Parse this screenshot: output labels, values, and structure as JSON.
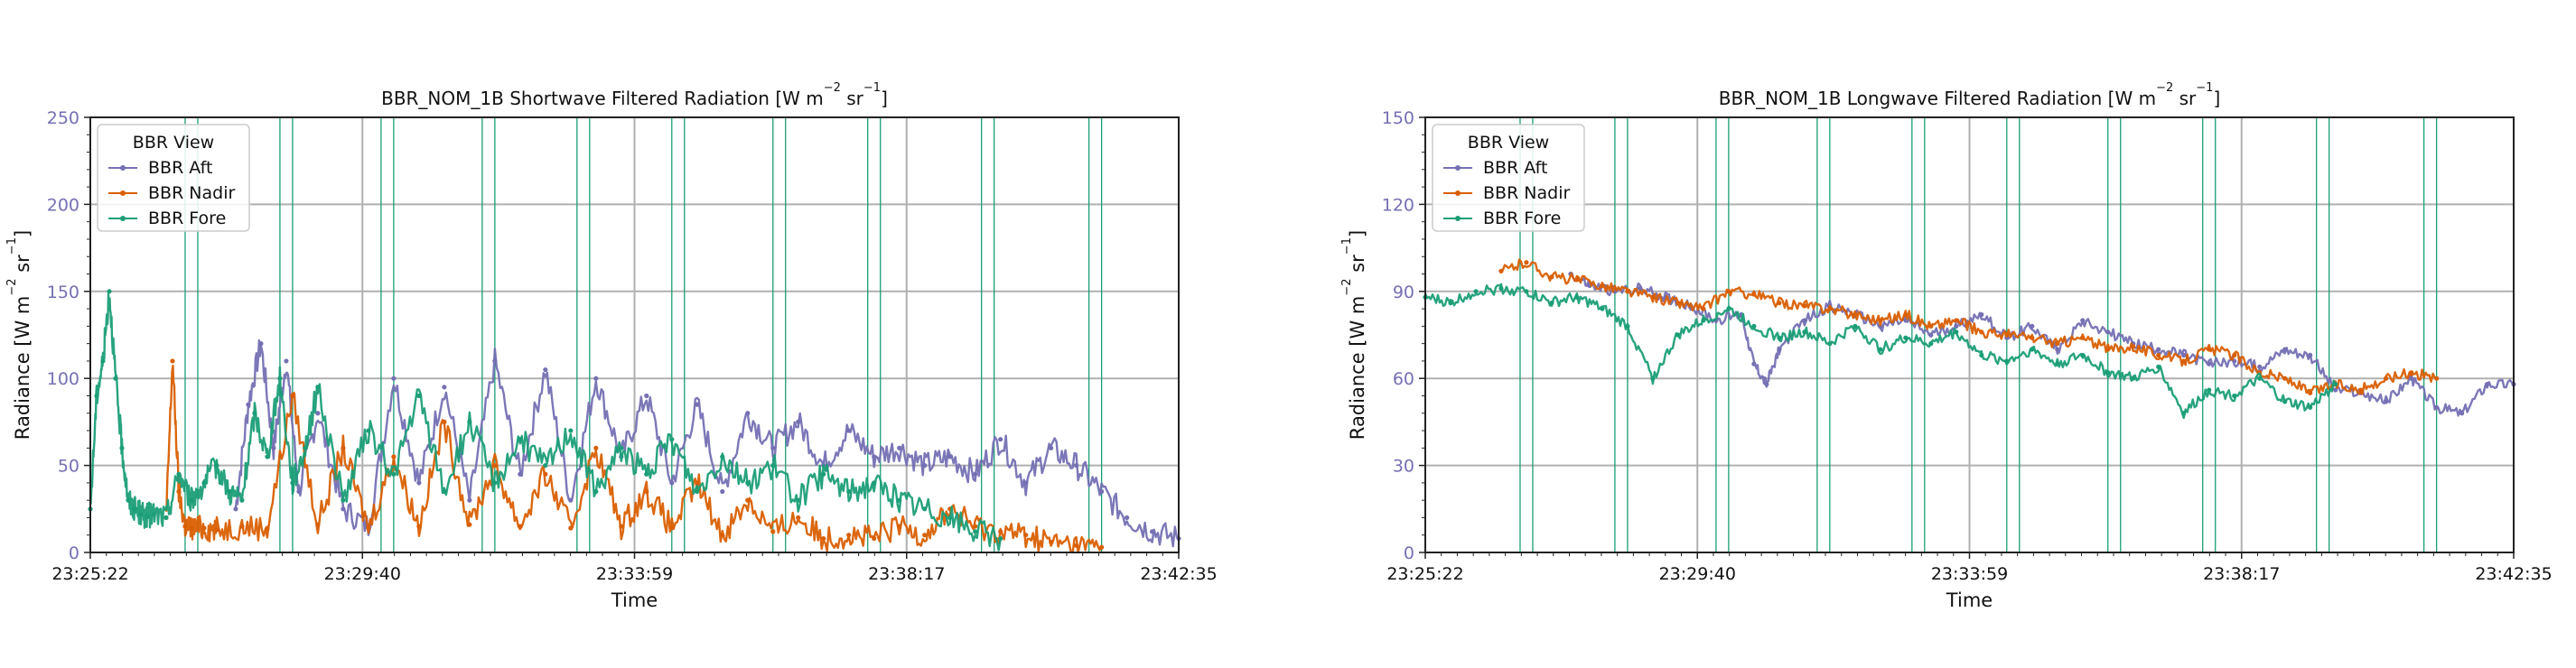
{
  "figure": {
    "background": "#ffffff"
  },
  "chart_data": [
    {
      "type": "line",
      "title": "BBR_NOM_1B Shortwave Filtered Radiation [W m⁻² sr⁻¹]",
      "title_parts": {
        "main": "BBR_NOM_1B Shortwave Filtered Radiation [W m",
        "exp1": "−2",
        "mid": " sr",
        "exp2": "−1",
        "end": "]"
      },
      "xlabel": "Time",
      "ylabel": "Radiance [W m⁻² sr⁻¹]",
      "ylabel_parts": {
        "main": "Radiance [W m",
        "exp1": "−2",
        "mid": " sr",
        "exp2": "−1",
        "end": "]"
      },
      "x_ticks": [
        "23:25:22",
        "23:29:40",
        "23:33:59",
        "23:38:17",
        "23:42:35"
      ],
      "x_range_minutes": [
        0,
        17.22
      ],
      "ylim": [
        0,
        250
      ],
      "y_ticks": [
        0,
        50,
        100,
        150,
        200,
        250
      ],
      "grid": true,
      "legend": {
        "title": "BBR View",
        "placement": "top-left",
        "entries": [
          "BBR Aft",
          "BBR Nadir",
          "BBR Fore"
        ]
      },
      "series": [
        {
          "name": "BBR Aft",
          "color": "#7570b3",
          "x": [
            2.3,
            2.5,
            2.7,
            2.9,
            3.1,
            3.3,
            3.6,
            4.0,
            4.4,
            4.8,
            5.2,
            5.6,
            6.0,
            6.4,
            6.8,
            7.2,
            7.6,
            8.0,
            8.4,
            8.8,
            9.2,
            9.6,
            10.0,
            10.4,
            10.8,
            11.2,
            11.6,
            12.0,
            12.4,
            12.8,
            13.2,
            13.6,
            14.0,
            14.4,
            14.8,
            15.2,
            15.6,
            16.0,
            16.4,
            16.8,
            17.22
          ],
          "values": [
            25,
            85,
            120,
            60,
            110,
            35,
            80,
            25,
            15,
            100,
            40,
            95,
            30,
            110,
            45,
            105,
            30,
            100,
            55,
            90,
            40,
            85,
            35,
            80,
            60,
            75,
            50,
            70,
            55,
            60,
            50,
            55,
            45,
            65,
            40,
            60,
            50,
            35,
            20,
            12,
            8
          ]
        },
        {
          "name": "BBR Nadir",
          "color": "#d95f02",
          "x": [
            1.2,
            1.3,
            1.4,
            1.5,
            1.6,
            1.8,
            2.0,
            2.4,
            2.8,
            3.2,
            3.6,
            4.0,
            4.4,
            4.8,
            5.2,
            5.6,
            6.0,
            6.4,
            6.8,
            7.2,
            7.6,
            8.0,
            8.4,
            8.8,
            9.2,
            9.6,
            10.0,
            10.4,
            10.8,
            11.2,
            11.6,
            12.0,
            12.4,
            12.8,
            13.2,
            13.6,
            14.0,
            14.4,
            14.8,
            15.2,
            15.6,
            16.0
          ],
          "values": [
            20,
            110,
            35,
            15,
            14,
            14,
            13,
            15,
            14,
            90,
            16,
            60,
            14,
            55,
            15,
            75,
            16,
            50,
            15,
            45,
            14,
            60,
            15,
            35,
            14,
            40,
            10,
            30,
            12,
            20,
            8,
            10,
            8,
            15,
            10,
            25,
            15,
            12,
            10,
            6,
            4,
            3
          ]
        },
        {
          "name": "BBR Fore",
          "color": "#1b9e77",
          "x": [
            0,
            0.1,
            0.2,
            0.3,
            0.4,
            0.5,
            0.6,
            0.7,
            0.8,
            0.9,
            1.0,
            1.2,
            1.4,
            1.6,
            1.8,
            2.0,
            2.2,
            2.4,
            2.6,
            2.8,
            3.0,
            3.2,
            3.4,
            3.6,
            4.0,
            4.4,
            4.8,
            5.2,
            5.6,
            6.0,
            6.4,
            6.8,
            7.2,
            7.6,
            8.0,
            8.4,
            8.8,
            9.2,
            9.6,
            10.0,
            10.4,
            10.8,
            11.2,
            11.6,
            12.0,
            12.4,
            12.8,
            13.2,
            13.6,
            14.0,
            14.4
          ],
          "values": [
            25,
            90,
            110,
            150,
            100,
            60,
            30,
            25,
            22,
            21,
            22,
            20,
            45,
            30,
            40,
            50,
            35,
            30,
            80,
            55,
            100,
            40,
            60,
            95,
            30,
            70,
            45,
            90,
            35,
            75,
            40,
            65,
            50,
            70,
            35,
            60,
            45,
            65,
            35,
            55,
            40,
            50,
            30,
            45,
            35,
            40,
            30,
            25,
            20,
            12,
            8
          ]
        }
      ]
    },
    {
      "type": "line",
      "title": "BBR_NOM_1B Longwave Filtered Radiation [W m⁻² sr⁻¹]",
      "title_parts": {
        "main": "BBR_NOM_1B Longwave Filtered Radiation [W m",
        "exp1": "−2",
        "mid": " sr",
        "exp2": "−1",
        "end": "]"
      },
      "xlabel": "Time",
      "ylabel": "Radiance [W m⁻² sr⁻¹]",
      "ylabel_parts": {
        "main": "Radiance [W m",
        "exp1": "−2",
        "mid": " sr",
        "exp2": "−1",
        "end": "]"
      },
      "x_ticks": [
        "23:25:22",
        "23:29:40",
        "23:33:59",
        "23:38:17",
        "23:42:35"
      ],
      "x_range_minutes": [
        0,
        17.22
      ],
      "ylim": [
        0,
        150
      ],
      "y_ticks": [
        0,
        30,
        60,
        90,
        120,
        150
      ],
      "grid": true,
      "legend": {
        "title": "BBR View",
        "placement": "top-left",
        "entries": [
          "BBR Aft",
          "BBR Nadir",
          "BBR Fore"
        ]
      },
      "series": [
        {
          "name": "BBR Aft",
          "color": "#7570b3",
          "x": [
            2.3,
            2.6,
            3.0,
            3.4,
            3.8,
            4.2,
            4.6,
            5.0,
            5.2,
            5.4,
            5.6,
            6.0,
            6.4,
            6.8,
            7.2,
            7.6,
            8.0,
            8.4,
            8.8,
            9.2,
            9.6,
            10.0,
            10.4,
            10.8,
            11.2,
            11.6,
            12.0,
            12.4,
            12.8,
            13.2,
            13.6,
            14.0,
            14.4,
            14.8,
            15.2,
            15.6,
            16.0,
            16.4,
            16.8,
            17.22
          ],
          "values": [
            96,
            92,
            90,
            91,
            88,
            85,
            80,
            82,
            65,
            58,
            70,
            80,
            85,
            82,
            78,
            80,
            75,
            78,
            82,
            74,
            78,
            70,
            80,
            76,
            72,
            70,
            68,
            65,
            66,
            64,
            70,
            68,
            56,
            55,
            52,
            60,
            50,
            48,
            58,
            58
          ]
        },
        {
          "name": "BBR Nadir",
          "color": "#d95f02",
          "x": [
            1.2,
            1.6,
            2.0,
            2.4,
            2.8,
            3.2,
            3.6,
            4.0,
            4.4,
            4.8,
            5.2,
            5.6,
            6.0,
            6.4,
            6.8,
            7.2,
            7.6,
            8.0,
            8.4,
            8.8,
            9.2,
            9.6,
            10.0,
            10.4,
            10.8,
            11.2,
            11.6,
            12.0,
            12.4,
            12.8,
            13.2,
            13.6,
            14.0,
            14.4,
            14.8,
            15.2,
            15.6,
            16.0
          ],
          "values": [
            97,
            100,
            95,
            94,
            92,
            90,
            88,
            86,
            84,
            90,
            89,
            86,
            85,
            84,
            82,
            80,
            82,
            78,
            80,
            76,
            75,
            74,
            72,
            74,
            70,
            71,
            68,
            66,
            70,
            68,
            62,
            60,
            55,
            58,
            56,
            60,
            62,
            60
          ]
        },
        {
          "name": "BBR Fore",
          "color": "#1b9e77",
          "x": [
            0,
            0.4,
            0.8,
            1.2,
            1.6,
            2.0,
            2.4,
            2.8,
            3.2,
            3.6,
            4.0,
            4.4,
            4.8,
            5.2,
            5.6,
            6.0,
            6.4,
            6.8,
            7.2,
            7.6,
            8.0,
            8.4,
            8.8,
            9.2,
            9.6,
            10.0,
            10.4,
            10.8,
            11.2,
            11.6,
            12.0,
            12.4,
            12.8,
            13.2,
            13.6,
            14.0,
            14.4
          ],
          "values": [
            88,
            86,
            90,
            91,
            90,
            86,
            88,
            84,
            78,
            60,
            75,
            80,
            84,
            78,
            74,
            76,
            72,
            78,
            70,
            74,
            72,
            76,
            68,
            66,
            70,
            65,
            68,
            62,
            60,
            64,
            48,
            56,
            54,
            60,
            52,
            50,
            58
          ]
        }
      ]
    }
  ]
}
